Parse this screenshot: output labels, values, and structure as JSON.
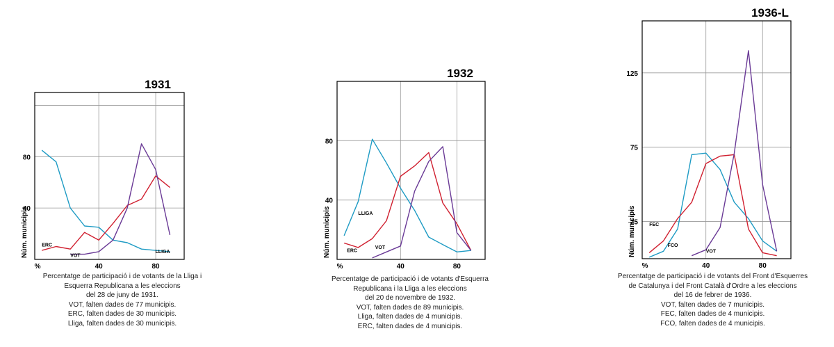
{
  "chart_data": [
    {
      "type": "line",
      "title": "1931",
      "ylabel": "Núm. municipis",
      "xlim": [
        -5,
        100
      ],
      "ylim": [
        0,
        130
      ],
      "grid": true,
      "x_tick_labels": [
        "%",
        "40",
        "80"
      ],
      "y_tick_labels": [
        "40",
        "80"
      ],
      "series": [
        {
          "name": "LLIGA",
          "color": "#1e9bc4",
          "points": [
            [
              0,
              85
            ],
            [
              10,
              76
            ],
            [
              20,
              40
            ],
            [
              30,
              26
            ],
            [
              40,
              25
            ],
            [
              50,
              15
            ],
            [
              60,
              13
            ],
            [
              70,
              8
            ],
            [
              80,
              7
            ],
            [
              90,
              6
            ]
          ]
        },
        {
          "name": "ERC",
          "color": "#d02030",
          "points": [
            [
              0,
              7
            ],
            [
              10,
              10
            ],
            [
              20,
              8
            ],
            [
              30,
              21
            ],
            [
              40,
              15
            ],
            [
              50,
              28
            ],
            [
              60,
              42
            ],
            [
              70,
              47
            ],
            [
              80,
              65
            ],
            [
              90,
              56
            ]
          ]
        },
        {
          "name": "VOT",
          "color": "#6a3a96",
          "points": [
            [
              20,
              4
            ],
            [
              30,
              4
            ],
            [
              40,
              6
            ],
            [
              50,
              15
            ],
            [
              60,
              40
            ],
            [
              70,
              90
            ],
            [
              80,
              70
            ],
            [
              90,
              19
            ]
          ]
        }
      ]
    },
    {
      "type": "line",
      "title": "1932",
      "ylabel": "Núm. municipis",
      "xlim": [
        -5,
        100
      ],
      "ylim": [
        0,
        120
      ],
      "grid": true,
      "x_tick_labels": [
        "%",
        "40",
        "80"
      ],
      "y_tick_labels": [
        "40",
        "80"
      ],
      "series": [
        {
          "name": "LLIGA",
          "color": "#1e9bc4",
          "points": [
            [
              0,
              16
            ],
            [
              10,
              39
            ],
            [
              20,
              81
            ],
            [
              30,
              65
            ],
            [
              40,
              48
            ],
            [
              50,
              33
            ],
            [
              60,
              15
            ],
            [
              70,
              10
            ],
            [
              80,
              5
            ],
            [
              90,
              6
            ]
          ]
        },
        {
          "name": "ERC",
          "color": "#d02030",
          "points": [
            [
              0,
              11
            ],
            [
              10,
              8
            ],
            [
              20,
              14
            ],
            [
              30,
              26
            ],
            [
              40,
              56
            ],
            [
              50,
              63
            ],
            [
              60,
              72
            ],
            [
              70,
              38
            ],
            [
              80,
              24
            ],
            [
              90,
              6
            ]
          ]
        },
        {
          "name": "VOT",
          "color": "#6a3a96",
          "points": [
            [
              20,
              1
            ],
            [
              30,
              5
            ],
            [
              40,
              9
            ],
            [
              50,
              46
            ],
            [
              60,
              66
            ],
            [
              70,
              76
            ],
            [
              80,
              18
            ],
            [
              90,
              6
            ]
          ]
        }
      ]
    },
    {
      "type": "line",
      "title": "1936-L",
      "ylabel": "Núm. municipis",
      "xlim": [
        -5,
        100
      ],
      "ylim": [
        0,
        160
      ],
      "grid": true,
      "x_tick_labels": [
        "%",
        "40",
        "80"
      ],
      "y_tick_labels": [
        "25",
        "75",
        "125"
      ],
      "series": [
        {
          "name": "FCO",
          "color": "#1e9bc4",
          "points": [
            [
              0,
              1
            ],
            [
              10,
              5
            ],
            [
              20,
              20
            ],
            [
              30,
              70
            ],
            [
              40,
              71
            ],
            [
              50,
              60
            ],
            [
              60,
              38
            ],
            [
              70,
              27
            ],
            [
              80,
              12
            ],
            [
              90,
              5
            ]
          ]
        },
        {
          "name": "FEC",
          "color": "#d02030",
          "points": [
            [
              0,
              4
            ],
            [
              10,
              12
            ],
            [
              20,
              27
            ],
            [
              30,
              38
            ],
            [
              40,
              64
            ],
            [
              50,
              69
            ],
            [
              60,
              70
            ],
            [
              70,
              20
            ],
            [
              80,
              4
            ],
            [
              90,
              2
            ]
          ]
        },
        {
          "name": "VOT",
          "color": "#6a3a96",
          "points": [
            [
              30,
              2
            ],
            [
              40,
              6
            ],
            [
              50,
              21
            ],
            [
              60,
              71
            ],
            [
              70,
              140
            ],
            [
              80,
              50
            ],
            [
              90,
              5
            ]
          ]
        }
      ]
    }
  ],
  "captions": [
    {
      "lines": [
        "Percentatge de participació i de votants de la Lliga i",
        "Esquerra Republicana a les eleccions",
        "del 28 de juny de 1931.",
        "VOT, falten dades de 77 municipis.",
        "ERC, falten dades de 30 municipis.",
        "Lliga, falten dades de 30 municipis."
      ]
    },
    {
      "lines": [
        "Percentatge de participació i de votants d'Esquerra",
        "Republicana i la Lliga a les eleccions",
        "del 20 de novembre de 1932.",
        "VOT, falten dades de 89 municipis.",
        "Lliga, falten dades de 4 municipis.",
        "ERC, falten dades de 4 municipis."
      ]
    },
    {
      "lines": [
        "Percentatge de participació i de votants del Front d'Esquerres",
        "de Catalunya i del Front Català d'Ordre a les eleccions",
        "del 16 de febrer de 1936.",
        "VOT, falten dades de 7 municipis.",
        "FEC, falten dades de 4 municipis.",
        "FCO, falten dades de 4 municipis."
      ]
    }
  ]
}
